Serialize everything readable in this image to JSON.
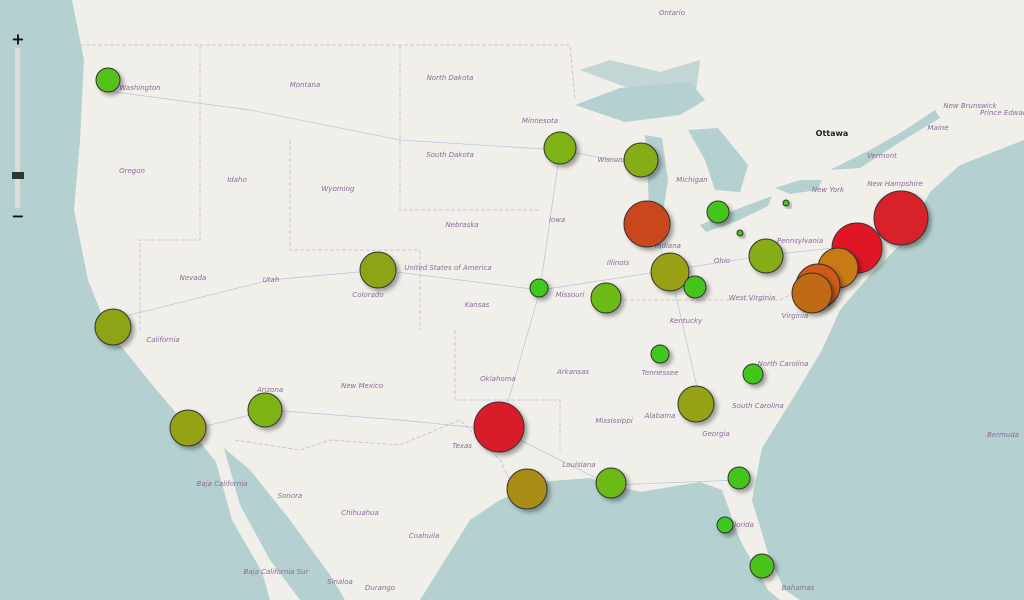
{
  "zoom": {
    "in": "+",
    "out": "−"
  },
  "labels": [
    "Ontario",
    "North Dakota",
    "Montana",
    "Washington",
    "Minnesota",
    "Ottawa",
    "South Dakota",
    "Wisconsin",
    "Oregon",
    "Idaho",
    "Wyoming",
    "Michigan",
    "New York",
    "Vermont",
    "New Hampshire",
    "Maine",
    "New Brunswick",
    "Prince Edward",
    "Nebraska",
    "Iowa",
    "Illinois",
    "Indiana",
    "Ohio",
    "Pennsylvania",
    "Nevada",
    "Utah",
    "Colorado",
    "United States of America",
    "Kansas",
    "Missouri",
    "Kentucky",
    "West Virginia",
    "Virginia",
    "California",
    "North Carolina",
    "Oklahoma",
    "Arkansas",
    "Tennessee",
    "Arizona",
    "New Mexico",
    "Mississippi",
    "Alabama",
    "Georgia",
    "South Carolina",
    "Texas",
    "Louisiana",
    "Florida",
    "Baja California",
    "Sonora",
    "Chihuahua",
    "Coahuila",
    "Durango",
    "Sinaloa",
    "Baja California Sur",
    "Bermuda",
    "Bahamas"
  ],
  "markers": [
    {
      "size": 12,
      "color": "#55c21a"
    },
    {
      "size": 16,
      "color": "#7eb318"
    },
    {
      "size": 17,
      "color": "#86ac16"
    },
    {
      "size": 23,
      "color": "#c8471c"
    },
    {
      "size": 11,
      "color": "#45c41a"
    },
    {
      "size": 3,
      "color": "#3fc81a"
    },
    {
      "size": 3,
      "color": "#3fc81a"
    },
    {
      "size": 17,
      "color": "#86ac16"
    },
    {
      "size": 27,
      "color": "#d8202c"
    },
    {
      "size": 25,
      "color": "#e01826"
    },
    {
      "size": 20,
      "color": "#c87a18"
    },
    {
      "size": 22,
      "color": "#d05a18"
    },
    {
      "size": 20,
      "color": "#c06a18"
    },
    {
      "size": 18,
      "color": "#8ea416"
    },
    {
      "size": 9,
      "color": "#3fc81a"
    },
    {
      "size": 15,
      "color": "#6cba18"
    },
    {
      "size": 19,
      "color": "#9aa016"
    },
    {
      "size": 11,
      "color": "#45c41a"
    },
    {
      "size": 18,
      "color": "#8ea416"
    },
    {
      "size": 9,
      "color": "#3fc81a"
    },
    {
      "size": 10,
      "color": "#42c61a"
    },
    {
      "size": 18,
      "color": "#96a216"
    },
    {
      "size": 17,
      "color": "#7eb318"
    },
    {
      "size": 18,
      "color": "#96a216"
    },
    {
      "size": 25,
      "color": "#d81c2a"
    },
    {
      "size": 20,
      "color": "#a88c16"
    },
    {
      "size": 15,
      "color": "#6cba18"
    },
    {
      "size": 11,
      "color": "#45c41a"
    },
    {
      "size": 8,
      "color": "#3fc81a"
    },
    {
      "size": 12,
      "color": "#4cc21a"
    }
  ]
}
